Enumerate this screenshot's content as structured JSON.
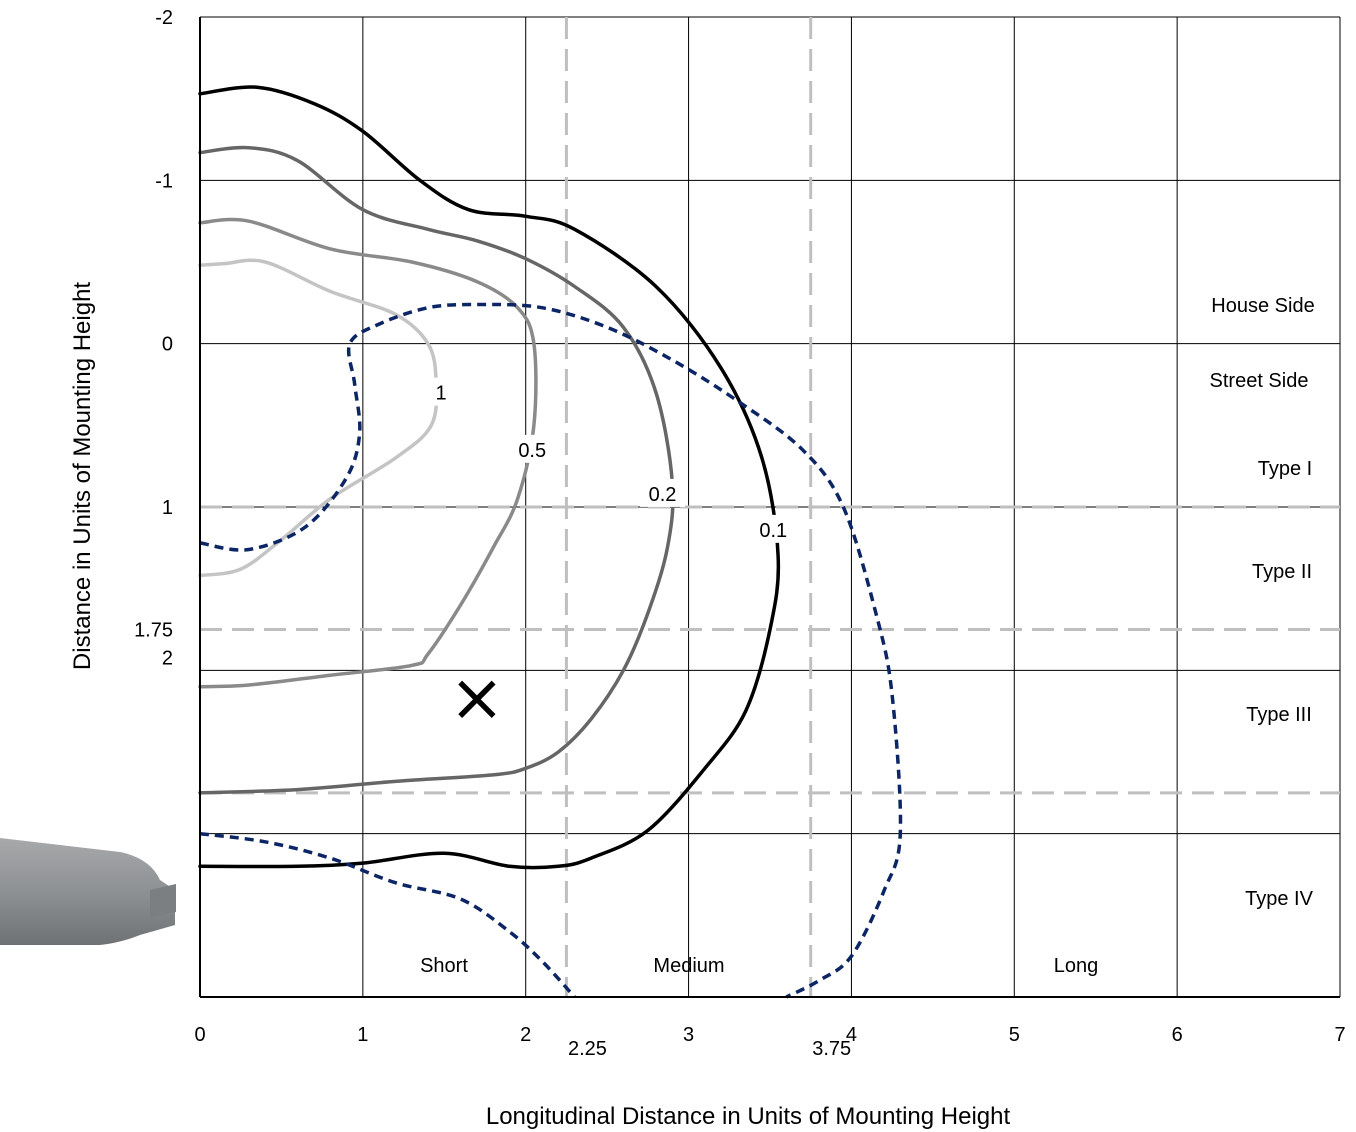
{
  "chart_data": {
    "type": "line",
    "title": "",
    "xlabel": "Longitudinal Distance in Units of Mounting Height",
    "ylabel": "Distance in Units of Mounting Height",
    "xlim": [
      0,
      7
    ],
    "ylim": [
      -2,
      4
    ],
    "y_axis_inverted": true,
    "grid": true,
    "x_ticks": [
      "0",
      "1",
      "2",
      "3",
      "4",
      "5",
      "6",
      "7"
    ],
    "x_ticks_extra": [
      "2.25",
      "3.75"
    ],
    "y_ticks": [
      "-2",
      "-1",
      "0",
      "1",
      "1.75",
      "2"
    ],
    "longitudinal_boundaries": [
      2.25,
      3.75
    ],
    "lateral_boundaries": [
      1,
      1.75,
      2.75
    ],
    "zone_labels": [
      "House Side",
      "Street Side",
      "Type I",
      "Type II",
      "Type III",
      "Type IV",
      "Short",
      "Medium",
      "Long"
    ],
    "marker": {
      "symbol": "×",
      "x": 1.7,
      "y": 2.17
    },
    "series": [
      {
        "name": "1",
        "color": "#c4c4c4",
        "style": "solid",
        "x": [
          0,
          0.15,
          0.4,
          0.8,
          1.2,
          1.4,
          1.45,
          1.42,
          1.2,
          0.8,
          0.5,
          0.25,
          0
        ],
        "y": [
          -0.48,
          -0.49,
          -0.5,
          -0.32,
          -0.18,
          0.0,
          0.23,
          0.5,
          0.7,
          0.95,
          1.2,
          1.38,
          1.42
        ]
      },
      {
        "name": "0.5",
        "color": "#8a8a8a",
        "style": "solid",
        "x": [
          0,
          0.3,
          0.8,
          1.3,
          1.7,
          1.95,
          2.05,
          2.05,
          1.95,
          1.8,
          1.6,
          1.4,
          1.3,
          0.8,
          0.3,
          0
        ],
        "y": [
          -0.74,
          -0.75,
          -0.58,
          -0.5,
          -0.38,
          -0.22,
          0.0,
          0.5,
          0.95,
          1.25,
          1.6,
          1.9,
          1.97,
          2.03,
          2.09,
          2.1
        ]
      },
      {
        "name": "0.2",
        "color": "#666666",
        "style": "solid",
        "x": [
          0,
          0.3,
          0.6,
          1.0,
          1.4,
          1.7,
          2.0,
          2.3,
          2.6,
          2.8,
          2.9,
          2.87,
          2.75,
          2.6,
          2.4,
          2.2,
          2.0,
          1.8,
          1.2,
          0.6,
          0
        ],
        "y": [
          -1.17,
          -1.2,
          -1.12,
          -0.82,
          -0.7,
          -0.63,
          -0.52,
          -0.35,
          -0.1,
          0.3,
          0.85,
          1.25,
          1.65,
          2.0,
          2.3,
          2.5,
          2.6,
          2.64,
          2.68,
          2.73,
          2.75
        ]
      },
      {
        "name": "0.1",
        "color": "#000000",
        "style": "solid",
        "x": [
          0,
          0.35,
          0.7,
          1.0,
          1.35,
          1.65,
          2.0,
          2.3,
          2.8,
          3.2,
          3.45,
          3.55,
          3.5,
          3.35,
          3.1,
          2.75,
          2.4,
          2.2,
          1.9,
          1.5,
          1.0,
          0.6,
          0
        ],
        "y": [
          -1.53,
          -1.57,
          -1.47,
          -1.3,
          -1.0,
          -0.82,
          -0.78,
          -0.7,
          -0.35,
          0.15,
          0.7,
          1.3,
          1.75,
          2.25,
          2.6,
          2.98,
          3.15,
          3.2,
          3.2,
          3.12,
          3.18,
          3.2,
          3.2
        ]
      },
      {
        "name": "",
        "color": "#0c2565",
        "style": "dashed",
        "x": [
          0,
          0.3,
          0.65,
          0.9,
          0.98,
          0.95,
          0.92,
          1.1,
          1.4,
          1.7,
          2.1,
          2.5,
          2.9,
          3.3,
          3.7,
          3.95,
          4.15,
          4.25,
          4.3,
          4.2,
          4.0,
          3.8,
          3.6
        ],
        "y": [
          1.22,
          1.26,
          1.12,
          0.82,
          0.55,
          0.25,
          0.0,
          -0.12,
          -0.22,
          -0.24,
          -0.22,
          -0.1,
          0.1,
          0.35,
          0.65,
          1.0,
          1.65,
          2.15,
          3.0,
          3.35,
          3.75,
          3.9,
          4.0
        ]
      },
      {
        "name": "",
        "color": "#0c2565",
        "style": "dashed",
        "x": [
          0,
          0.4,
          0.8,
          1.2,
          1.6,
          1.9,
          2.1,
          2.3
        ],
        "y": [
          3.0,
          3.05,
          3.15,
          3.3,
          3.4,
          3.6,
          3.78,
          4.0
        ]
      }
    ]
  }
}
